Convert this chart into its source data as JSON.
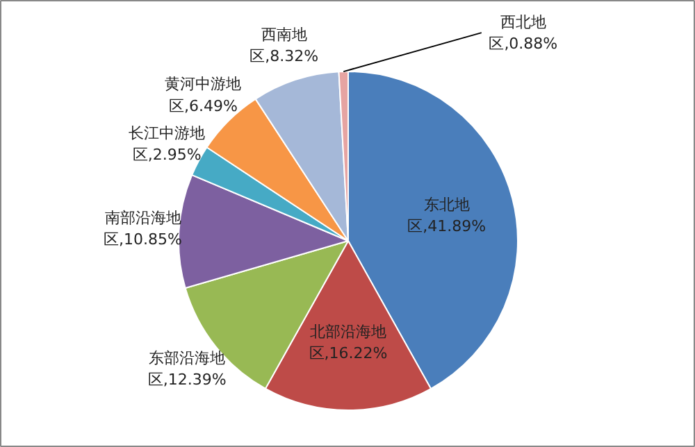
{
  "chart_data": {
    "type": "pie",
    "categories": [
      "东北地区",
      "北部沿海地区",
      "东部沿海地区",
      "南部沿海地区",
      "长江中游地区",
      "黄河中游地区",
      "西南地区",
      "西北地区"
    ],
    "values": [
      41.89,
      16.22,
      12.39,
      10.85,
      2.95,
      6.49,
      8.32,
      0.88
    ],
    "value_labels": [
      ",41.89%",
      ",16.22%",
      ",12.39%",
      ",10.85%",
      ",2.95%",
      ",6.49%",
      ",8.32%",
      ",0.88%"
    ],
    "colors": [
      "#4a7ebb",
      "#be4b48",
      "#98b954",
      "#7d60a0",
      "#46aac5",
      "#f79646",
      "#a5b8d8",
      "#e6a4a2"
    ]
  }
}
